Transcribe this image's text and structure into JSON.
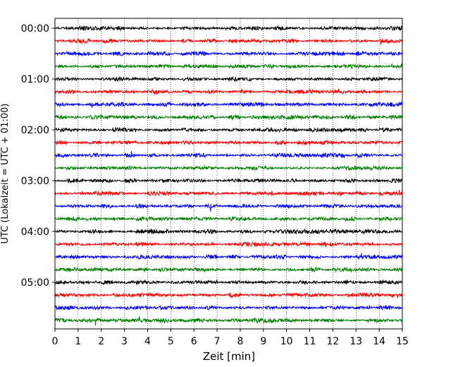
{
  "chart_data": {
    "type": "line",
    "description_kind": "helicorder seismogram (stacked 15-minute traces)",
    "xlabel": "Zeit  [min]",
    "ylabel": "UTC (Lokalzeit = UTC + 01:00)",
    "xlim": [
      0,
      15
    ],
    "x_ticks": [
      0,
      1,
      2,
      3,
      4,
      5,
      6,
      7,
      8,
      9,
      10,
      11,
      12,
      13,
      14,
      15
    ],
    "x_tick_labels": [
      "0",
      "1",
      "2",
      "3",
      "4",
      "5",
      "6",
      "7",
      "8",
      "9",
      "10",
      "11",
      "12",
      "13",
      "14",
      "15"
    ],
    "y_tick_labels": [
      "00:00",
      "01:00",
      "02:00",
      "03:00",
      "04:00",
      "05:00"
    ],
    "minutes_per_trace": 15,
    "grid": {
      "x": true,
      "style": "dotted",
      "color": "#000000"
    },
    "trace_colors": [
      "#000000",
      "#ff0000",
      "#0000ff",
      "#008000"
    ],
    "series": [
      {
        "start": "00:00",
        "color": "#000000",
        "values": []
      },
      {
        "start": "00:15",
        "color": "#ff0000",
        "values": []
      },
      {
        "start": "00:30",
        "color": "#0000ff",
        "values": []
      },
      {
        "start": "00:45",
        "color": "#008000",
        "values": []
      },
      {
        "start": "01:00",
        "color": "#000000",
        "values": []
      },
      {
        "start": "01:15",
        "color": "#ff0000",
        "values": []
      },
      {
        "start": "01:30",
        "color": "#0000ff",
        "values": []
      },
      {
        "start": "01:45",
        "color": "#008000",
        "values": []
      },
      {
        "start": "02:00",
        "color": "#000000",
        "values": []
      },
      {
        "start": "02:15",
        "color": "#ff0000",
        "values": []
      },
      {
        "start": "02:30",
        "color": "#0000ff",
        "values": []
      },
      {
        "start": "02:45",
        "color": "#008000",
        "values": []
      },
      {
        "start": "03:00",
        "color": "#000000",
        "values": []
      },
      {
        "start": "03:15",
        "color": "#ff0000",
        "values": []
      },
      {
        "start": "03:30",
        "color": "#0000ff",
        "values": []
      },
      {
        "start": "03:45",
        "color": "#008000",
        "values": []
      },
      {
        "start": "04:00",
        "color": "#000000",
        "values": []
      },
      {
        "start": "04:15",
        "color": "#ff0000",
        "values": []
      },
      {
        "start": "04:30",
        "color": "#0000ff",
        "values": []
      },
      {
        "start": "04:45",
        "color": "#008000",
        "values": []
      },
      {
        "start": "05:00",
        "color": "#000000",
        "values": []
      },
      {
        "start": "05:15",
        "color": "#ff0000",
        "values": []
      },
      {
        "start": "05:30",
        "color": "#0000ff",
        "values": []
      },
      {
        "start": "05:45",
        "color": "#008000",
        "values": []
      }
    ]
  }
}
